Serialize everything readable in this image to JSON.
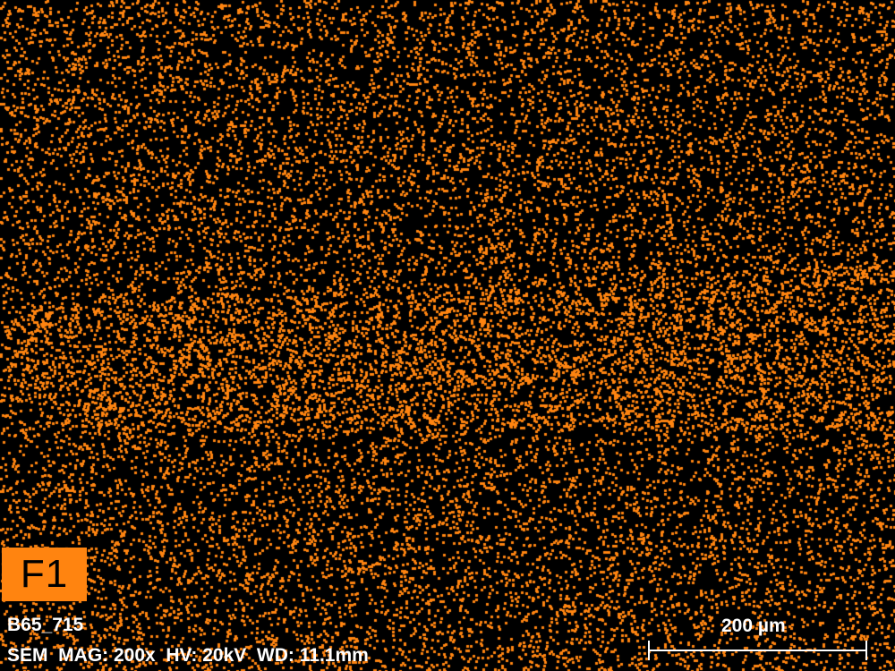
{
  "map": {
    "element_label": "F1",
    "dot_color": "#ff8410",
    "background_color": "#000000"
  },
  "sample_name": "B65_715",
  "acquisition_info": "SEM  MAG: 200x  HV: 20kV  WD: 11.1mm",
  "scale_bar": {
    "label": "200 µm"
  }
}
